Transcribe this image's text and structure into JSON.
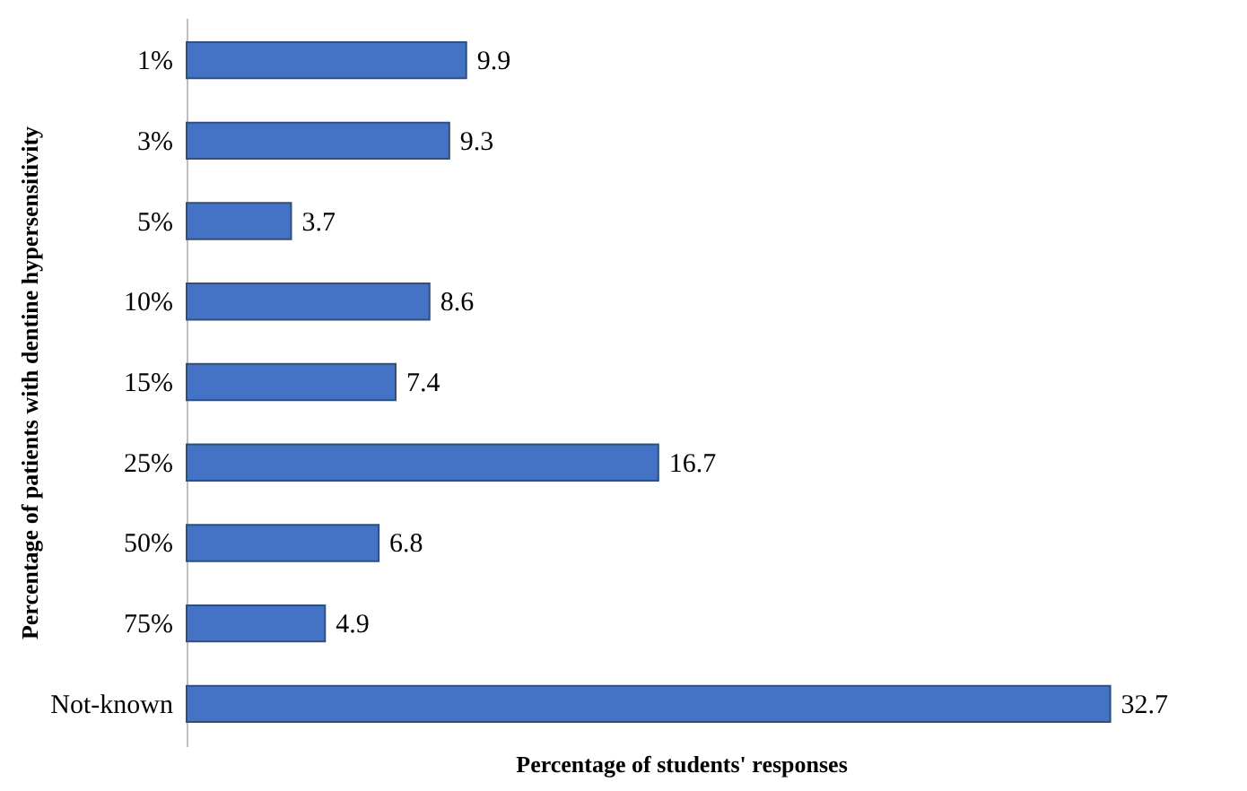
{
  "chart_data": {
    "type": "bar",
    "orientation": "horizontal",
    "xlabel": "Percentage of students' responses",
    "ylabel": "Percentage of patients with dentine hypersensitivity",
    "categories": [
      "1%",
      "3%",
      "5%",
      "10%",
      "15%",
      "25%",
      "50%",
      "75%",
      "Not-known"
    ],
    "values": [
      9.9,
      9.3,
      3.7,
      8.6,
      7.4,
      16.7,
      6.8,
      4.9,
      32.7
    ],
    "color": "#4472c4",
    "data_labels": true,
    "grid": false,
    "tick_labels": "y"
  }
}
